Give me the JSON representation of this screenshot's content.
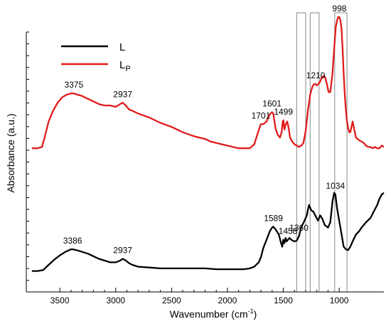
{
  "chart_data": {
    "type": "line",
    "xlabel": "Wavenumber (cm",
    "xlabel_superscript": "-1",
    "xlabel_suffix": ")",
    "ylabel": "Absorbance (a.u.)",
    "xlim": [
      3800,
      600
    ],
    "x_reversed": true,
    "grid": false,
    "legend_position": "top-left",
    "x_ticks": [
      3500,
      3000,
      2500,
      2000,
      1500,
      1000
    ],
    "series": [
      {
        "name": "L",
        "name_subscript": "",
        "color": "#000000",
        "x": [
          3750,
          3700,
          3650,
          3600,
          3550,
          3500,
          3450,
          3400,
          3386,
          3350,
          3300,
          3250,
          3200,
          3150,
          3100,
          3050,
          3000,
          2960,
          2937,
          2910,
          2880,
          2850,
          2800,
          2700,
          2600,
          2500,
          2400,
          2300,
          2200,
          2100,
          2000,
          1900,
          1850,
          1800,
          1760,
          1720,
          1700,
          1680,
          1650,
          1620,
          1600,
          1589,
          1570,
          1540,
          1520,
          1510,
          1500,
          1490,
          1480,
          1470,
          1458,
          1445,
          1430,
          1400,
          1380,
          1360,
          1345,
          1330,
          1310,
          1290,
          1270,
          1250,
          1230,
          1210,
          1190,
          1170,
          1150,
          1130,
          1100,
          1080,
          1060,
          1045,
          1034,
          1020,
          1000,
          980,
          960,
          940,
          920,
          900,
          880,
          850,
          820,
          800,
          760,
          720,
          700,
          680,
          660,
          640,
          620,
          600
        ],
        "y": [
          0.02,
          0.02,
          0.03,
          0.09,
          0.15,
          0.2,
          0.24,
          0.27,
          0.27,
          0.26,
          0.24,
          0.22,
          0.19,
          0.16,
          0.14,
          0.12,
          0.12,
          0.14,
          0.16,
          0.14,
          0.11,
          0.09,
          0.07,
          0.06,
          0.05,
          0.05,
          0.05,
          0.05,
          0.05,
          0.04,
          0.04,
          0.04,
          0.04,
          0.05,
          0.07,
          0.12,
          0.18,
          0.28,
          0.38,
          0.48,
          0.52,
          0.53,
          0.5,
          0.44,
          0.34,
          0.3,
          0.38,
          0.34,
          0.4,
          0.36,
          0.38,
          0.4,
          0.38,
          0.36,
          0.37,
          0.42,
          0.5,
          0.55,
          0.6,
          0.66,
          0.78,
          0.72,
          0.7,
          0.65,
          0.6,
          0.66,
          0.62,
          0.55,
          0.52,
          0.58,
          0.82,
          0.92,
          0.9,
          0.75,
          0.6,
          0.45,
          0.3,
          0.27,
          0.26,
          0.3,
          0.36,
          0.44,
          0.48,
          0.52,
          0.58,
          0.63,
          0.68,
          0.73,
          0.78,
          0.85,
          0.9,
          0.92
        ]
      },
      {
        "name": "L",
        "name_subscript": "P",
        "color": "#e01b1b",
        "x": [
          3750,
          3700,
          3660,
          3630,
          3600,
          3560,
          3520,
          3480,
          3440,
          3400,
          3375,
          3340,
          3300,
          3250,
          3200,
          3150,
          3100,
          3050,
          3000,
          2960,
          2937,
          2910,
          2880,
          2850,
          2800,
          2700,
          2600,
          2500,
          2400,
          2300,
          2250,
          2200,
          2150,
          2100,
          2050,
          2000,
          1950,
          1900,
          1850,
          1800,
          1760,
          1730,
          1710,
          1701,
          1680,
          1650,
          1630,
          1615,
          1601,
          1590,
          1570,
          1550,
          1530,
          1515,
          1505,
          1499,
          1490,
          1478,
          1465,
          1452,
          1440,
          1420,
          1400,
          1380,
          1360,
          1340,
          1320,
          1300,
          1280,
          1260,
          1240,
          1225,
          1210,
          1200,
          1185,
          1170,
          1155,
          1140,
          1125,
          1110,
          1095,
          1080,
          1060,
          1040,
          1030,
          1020,
          1010,
          1000,
          998,
          990,
          980,
          970,
          960,
          950,
          940,
          930,
          920,
          910,
          900,
          890,
          880,
          870,
          860,
          850,
          820,
          800,
          780,
          760,
          740,
          720,
          700,
          680,
          660,
          640,
          620,
          600
        ],
        "y": [
          0.02,
          0.02,
          0.03,
          0.12,
          0.22,
          0.3,
          0.36,
          0.4,
          0.42,
          0.43,
          0.43,
          0.42,
          0.41,
          0.39,
          0.37,
          0.35,
          0.34,
          0.34,
          0.33,
          0.35,
          0.36,
          0.34,
          0.31,
          0.3,
          0.28,
          0.25,
          0.21,
          0.18,
          0.14,
          0.11,
          0.1,
          0.09,
          0.07,
          0.06,
          0.05,
          0.04,
          0.03,
          0.02,
          0.02,
          0.02,
          0.05,
          0.13,
          0.18,
          0.2,
          0.2,
          0.22,
          0.26,
          0.28,
          0.29,
          0.28,
          0.17,
          0.12,
          0.1,
          0.14,
          0.22,
          0.23,
          0.16,
          0.2,
          0.22,
          0.17,
          0.1,
          0.07,
          0.05,
          0.04,
          0.03,
          0.04,
          0.06,
          0.15,
          0.3,
          0.42,
          0.48,
          0.5,
          0.5,
          0.49,
          0.5,
          0.52,
          0.55,
          0.56,
          0.55,
          0.5,
          0.44,
          0.44,
          0.58,
          0.82,
          0.93,
          0.97,
          1.0,
          1.0,
          1.0,
          0.98,
          0.92,
          0.78,
          0.58,
          0.42,
          0.3,
          0.22,
          0.17,
          0.14,
          0.14,
          0.18,
          0.22,
          0.18,
          0.14,
          0.1,
          0.08,
          0.07,
          0.06,
          0.04,
          0.03,
          0.03,
          0.02,
          0.03,
          0.02,
          0.02,
          0.04,
          0.03
        ]
      }
    ],
    "peak_labels": [
      {
        "series": 1,
        "x": 3375,
        "text": "3375"
      },
      {
        "series": 1,
        "x": 2937,
        "text": "2937"
      },
      {
        "series": 1,
        "x": 1701,
        "text": "1701"
      },
      {
        "series": 1,
        "x": 1601,
        "text": "1601"
      },
      {
        "series": 1,
        "x": 1499,
        "text": "1499"
      },
      {
        "series": 1,
        "x": 1210,
        "text": "1210"
      },
      {
        "series": 1,
        "x": 998,
        "text": "998"
      },
      {
        "series": 0,
        "x": 3386,
        "text": "3386"
      },
      {
        "series": 0,
        "x": 2937,
        "text": "2937"
      },
      {
        "series": 0,
        "x": 1589,
        "text": "1589"
      },
      {
        "series": 0,
        "x": 1458,
        "text": "1458"
      },
      {
        "series": 0,
        "x": 1360,
        "text": "1360"
      },
      {
        "series": 0,
        "x": 1034,
        "text": "1034"
      }
    ],
    "highlight_bands": [
      {
        "from": 1380,
        "to": 1300
      },
      {
        "from": 1260,
        "to": 1180
      },
      {
        "from": 1040,
        "to": 930
      }
    ]
  }
}
